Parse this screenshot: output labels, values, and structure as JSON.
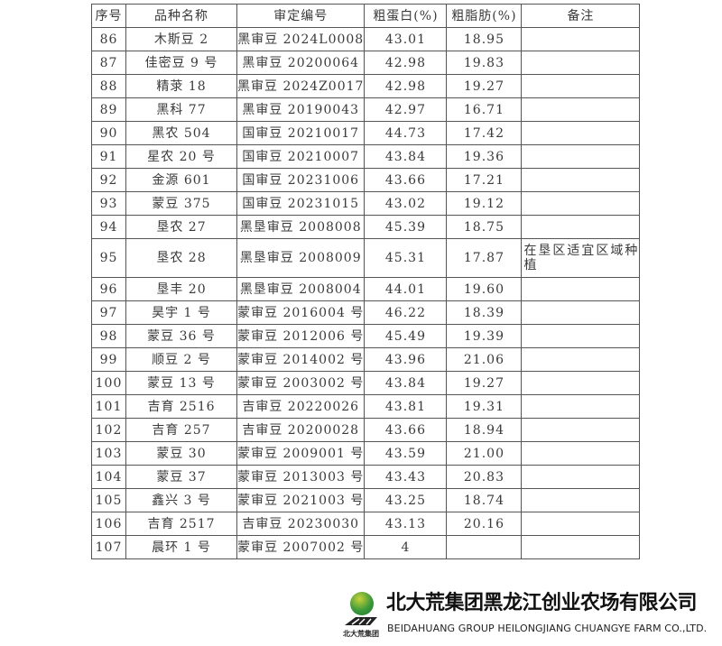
{
  "table": {
    "headers": [
      "序号",
      "品种名称",
      "审定编号",
      "粗蛋白(%)",
      "粗脂肪(%)",
      "备注"
    ],
    "rows": [
      {
        "no": "86",
        "name": "木斯豆 2",
        "code": "黑审豆 2024L0008",
        "protein": "43.01",
        "fat": "18.95",
        "note": ""
      },
      {
        "no": "87",
        "name": "佳密豆 9 号",
        "code": "黑审豆 20200064",
        "protein": "42.98",
        "fat": "19.83",
        "note": ""
      },
      {
        "no": "88",
        "name": "精莍 18",
        "code": "黑审豆 2024Z0017",
        "protein": "42.98",
        "fat": "19.27",
        "note": ""
      },
      {
        "no": "89",
        "name": "黑科 77",
        "code": "黑审豆 20190043",
        "protein": "42.97",
        "fat": "16.71",
        "note": ""
      },
      {
        "no": "90",
        "name": "黑农 504",
        "code": "国审豆 20210017",
        "protein": "44.73",
        "fat": "17.42",
        "note": ""
      },
      {
        "no": "91",
        "name": "星农 20 号",
        "code": "国审豆 20210007",
        "protein": "43.84",
        "fat": "19.36",
        "note": ""
      },
      {
        "no": "92",
        "name": "金源 601",
        "code": "国审豆 20231006",
        "protein": "43.66",
        "fat": "17.21",
        "note": ""
      },
      {
        "no": "93",
        "name": "蒙豆 375",
        "code": "国审豆 20231015",
        "protein": "43.02",
        "fat": "19.12",
        "note": ""
      },
      {
        "no": "94",
        "name": "垦农 27",
        "code": "黑垦审豆 2008008",
        "protein": "45.39",
        "fat": "18.75",
        "note": ""
      },
      {
        "no": "95",
        "name": "垦农 28",
        "code": "黑垦审豆 2008009",
        "protein": "45.31",
        "fat": "17.87",
        "note": "在垦区适宜区域种植"
      },
      {
        "no": "96",
        "name": "垦丰 20",
        "code": "黑垦审豆 2008004",
        "protein": "44.01",
        "fat": "19.60",
        "note": ""
      },
      {
        "no": "97",
        "name": "昊宇 1 号",
        "code": "蒙审豆 2016004 号",
        "protein": "46.22",
        "fat": "18.39",
        "note": ""
      },
      {
        "no": "98",
        "name": "蒙豆 36 号",
        "code": "蒙审豆 2012006 号",
        "protein": "45.49",
        "fat": "19.39",
        "note": ""
      },
      {
        "no": "99",
        "name": "顺豆 2 号",
        "code": "蒙审豆 2014002 号",
        "protein": "43.96",
        "fat": "21.06",
        "note": ""
      },
      {
        "no": "100",
        "name": "蒙豆 13 号",
        "code": "蒙审豆 2003002 号",
        "protein": "43.84",
        "fat": "19.27",
        "note": ""
      },
      {
        "no": "101",
        "name": "吉育 2516",
        "code": "吉审豆 20220026",
        "protein": "43.81",
        "fat": "19.31",
        "note": ""
      },
      {
        "no": "102",
        "name": "吉育 257",
        "code": "吉审豆 20200028",
        "protein": "43.66",
        "fat": "18.94",
        "note": ""
      },
      {
        "no": "103",
        "name": "蒙豆 30",
        "code": "蒙审豆 2009001 号",
        "protein": "43.59",
        "fat": "21.00",
        "note": ""
      },
      {
        "no": "104",
        "name": "蒙豆 37",
        "code": "蒙审豆 2013003 号",
        "protein": "43.43",
        "fat": "20.83",
        "note": ""
      },
      {
        "no": "105",
        "name": "鑫兴 3 号",
        "code": "蒙审豆 2021003 号",
        "protein": "43.25",
        "fat": "18.74",
        "note": ""
      },
      {
        "no": "106",
        "name": "吉育 2517",
        "code": "吉审豆 20230030",
        "protein": "43.13",
        "fat": "20.16",
        "note": ""
      },
      {
        "no": "107",
        "name": "晨环 1 号",
        "code": "蒙审豆 2007002 号",
        "protein": "4",
        "fat": "",
        "note": ""
      }
    ]
  },
  "watermark": {
    "logo_small_text": "北大荒集团",
    "company_cn": "北大荒集团黑龙江创业农场有限公司",
    "company_en": "BEIDAHUANG GROUP HEILONGJIANG CHUANGYE FARM CO.,LTD.",
    "logo_green": "#3a9a3a"
  }
}
